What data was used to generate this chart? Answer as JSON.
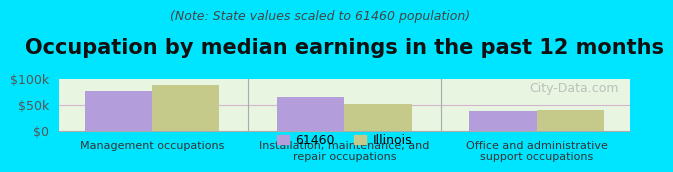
{
  "title": "Occupation by median earnings in the past 12 months",
  "subtitle": "(Note: State values scaled to 61460 population)",
  "categories": [
    "Management occupations",
    "Installation, maintenance, and\nrepair occupations",
    "Office and administrative\nsupport occupations"
  ],
  "values_61460": [
    76000,
    65000,
    37000
  ],
  "values_illinois": [
    87000,
    52000,
    39000
  ],
  "color_61460": "#b39ddb",
  "color_illinois": "#c5c98a",
  "background_outer": "#00e5ff",
  "background_inner_start": "#f0f8e8",
  "background_inner_end": "#ffffff",
  "ylim": [
    0,
    100000
  ],
  "yticks": [
    0,
    50000,
    100000
  ],
  "ytick_labels": [
    "$0",
    "$50k",
    "$100k"
  ],
  "legend_label_1": "61460",
  "legend_label_2": "Illinois",
  "watermark": "City-Data.com",
  "bar_width": 0.35,
  "title_fontsize": 15,
  "subtitle_fontsize": 9,
  "tick_fontsize": 9,
  "label_fontsize": 8
}
